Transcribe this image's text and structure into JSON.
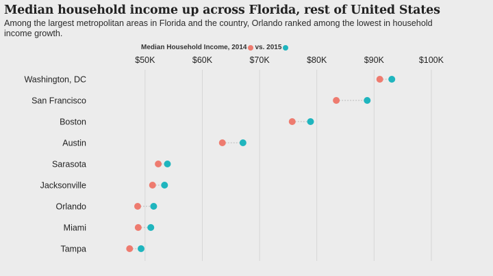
{
  "title": "Median household income up across Florida, rest of United States",
  "subtitle": "Among the largest metropolitan areas in Florida and the country, Orlando ranked among the lowest in household income growth.",
  "legend": {
    "label_2014": "Median Household Income, 2014",
    "label_2015": "vs. 2015"
  },
  "colors": {
    "y2014": "#ee7b6f",
    "y2015": "#1fb5be",
    "grid": "#d6d6d6",
    "connector": "#b9b9b9",
    "background": "#ececec"
  },
  "chart_data": {
    "type": "scatter",
    "subtype": "dumbbell",
    "xlim": [
      42000,
      103000
    ],
    "x_ticks": [
      50000,
      60000,
      70000,
      80000,
      90000,
      100000
    ],
    "x_tick_labels": [
      "$50K",
      "$60K",
      "$70K",
      "$80K",
      "$90K",
      "$100K"
    ],
    "grid": true,
    "legend_position": "top-center",
    "categories": [
      "Washington, DC",
      "San Francisco",
      "Boston",
      "Austin",
      "Sarasota",
      "Jacksonville",
      "Orlando",
      "Miami",
      "Tampa"
    ],
    "series": [
      {
        "name": "2014",
        "values": [
          91000,
          83400,
          75700,
          63500,
          52300,
          51300,
          48700,
          48800,
          47300
        ]
      },
      {
        "name": "2015",
        "values": [
          93100,
          88800,
          78900,
          67100,
          53900,
          53400,
          51500,
          51000,
          49300
        ]
      }
    ]
  }
}
